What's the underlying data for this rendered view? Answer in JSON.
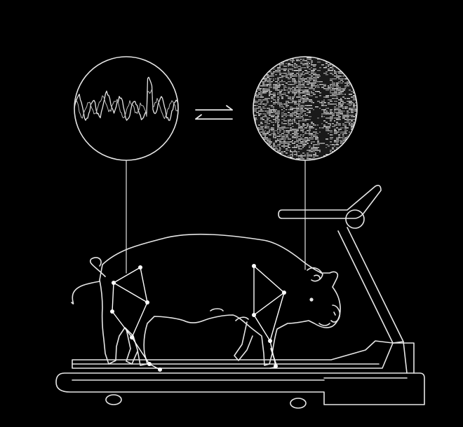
{
  "colors": {
    "background": "#000000",
    "line": "#e6e6e6",
    "joint": "#ffffff",
    "texture_dark": "#1a1a1a",
    "texture_light": "#cfcfcf"
  },
  "icons": {
    "waveform": "emg-waveform-icon",
    "neural_texture": "neural-activity-icon",
    "exchange": "bidirectional-arrows-icon"
  },
  "joints": {
    "hind_leg": 5,
    "front_leg": 6
  }
}
